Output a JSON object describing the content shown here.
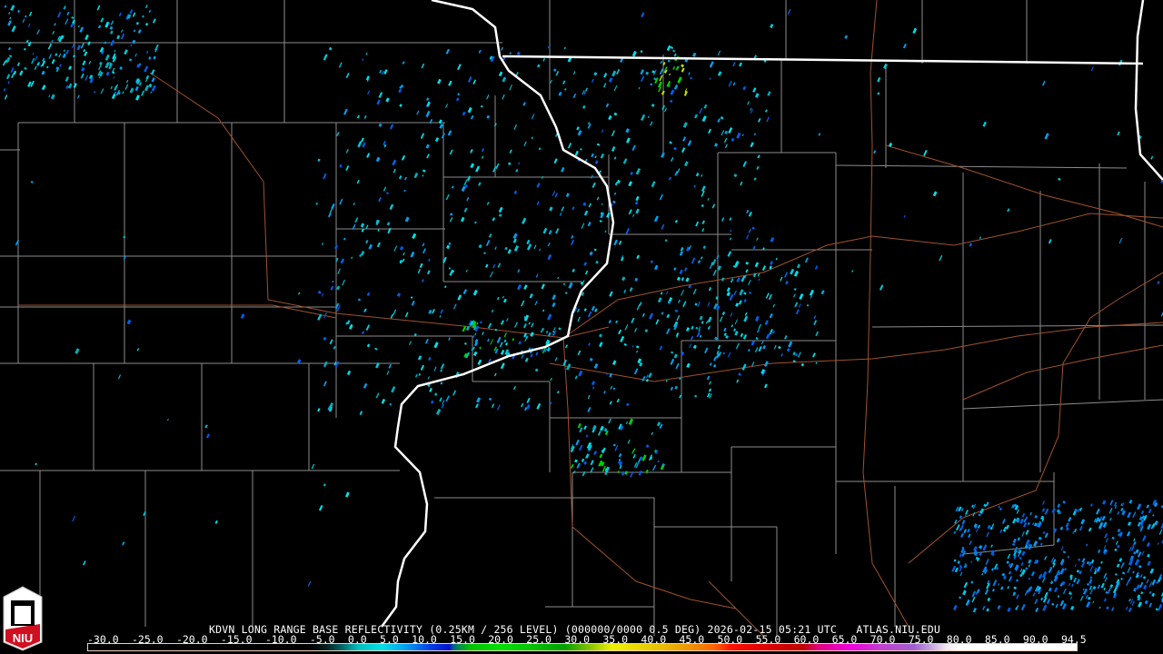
{
  "product": {
    "title": "KDVN LONG RANGE BASE REFLECTIVITY (0.25KM / 256 LEVEL) (000000/0000 0.5 DEG) 2026-02-15 05:21 UTC   ATLAS.NIU.EDU",
    "logo_text": "NIU"
  },
  "legend": {
    "labels": [
      "-30.0",
      "-25.0",
      "-20.0",
      "-15.0",
      "-10.0",
      "-5.0",
      "0.0",
      "5.0",
      "10.0",
      "15.0",
      "20.0",
      "25.0",
      "30.0",
      "35.0",
      "40.0",
      "45.0",
      "50.0",
      "55.0",
      "60.0",
      "65.0",
      "70.0",
      "75.0",
      "80.0",
      "85.0",
      "90.0",
      "94.5"
    ],
    "range_dbz": [
      -30,
      94.5
    ],
    "color_stops": [
      [
        -30,
        "#000000"
      ],
      [
        -2,
        "#000000"
      ],
      [
        0,
        "#002020"
      ],
      [
        2,
        "#006868"
      ],
      [
        4,
        "#00c0c0"
      ],
      [
        7,
        "#00e0e8"
      ],
      [
        10,
        "#00a0f0"
      ],
      [
        13,
        "#0040e8"
      ],
      [
        15.5,
        "#0010d0"
      ],
      [
        16,
        "#006880"
      ],
      [
        18,
        "#00c000"
      ],
      [
        22,
        "#00e000"
      ],
      [
        30,
        "#00a000"
      ],
      [
        33,
        "#80c000"
      ],
      [
        36,
        "#f0f000"
      ],
      [
        42,
        "#e8c000"
      ],
      [
        46,
        "#f09000"
      ],
      [
        49,
        "#ff6000"
      ],
      [
        51,
        "#ff1000"
      ],
      [
        55,
        "#e00000"
      ],
      [
        60,
        "#c00000"
      ],
      [
        62,
        "#e00080"
      ],
      [
        66,
        "#f000e0"
      ],
      [
        70,
        "#c040d0"
      ],
      [
        74,
        "#a060d0"
      ],
      [
        76,
        "#c0a0e0"
      ],
      [
        78,
        "#f0e8f0"
      ],
      [
        80,
        "#ffffff"
      ],
      [
        94.5,
        "#ffffff"
      ]
    ]
  },
  "map_colors": {
    "county": "#8c8c8c",
    "state": "#ffffff",
    "road": "#a0522d",
    "background": "#000000"
  }
}
